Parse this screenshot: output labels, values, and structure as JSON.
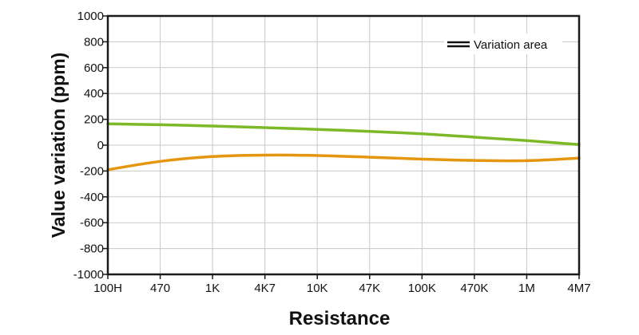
{
  "chart_data": {
    "type": "line",
    "title": "",
    "xlabel": "Resistance",
    "ylabel": "Value variation (ppm)",
    "categories": [
      "100H",
      "470",
      "1K",
      "4K7",
      "10K",
      "47K",
      "100K",
      "470K",
      "1M",
      "4M7"
    ],
    "yticks": [
      "1000",
      "800",
      "600",
      "400",
      "200",
      "0",
      "-200",
      "-400",
      "-600",
      "-800",
      "-1000"
    ],
    "ylim": [
      -1000,
      1000
    ],
    "grid": true,
    "legend": {
      "placement": "top-right",
      "label": "Variation area"
    },
    "series": [
      {
        "color": "#7cb928",
        "values": [
          165,
          158,
          148,
          136,
          122,
          106,
          88,
          62,
          35,
          5
        ]
      },
      {
        "color": "#e5960e",
        "values": [
          -190,
          -125,
          -88,
          -77,
          -80,
          -93,
          -108,
          -118,
          -120,
          -100
        ]
      }
    ]
  }
}
